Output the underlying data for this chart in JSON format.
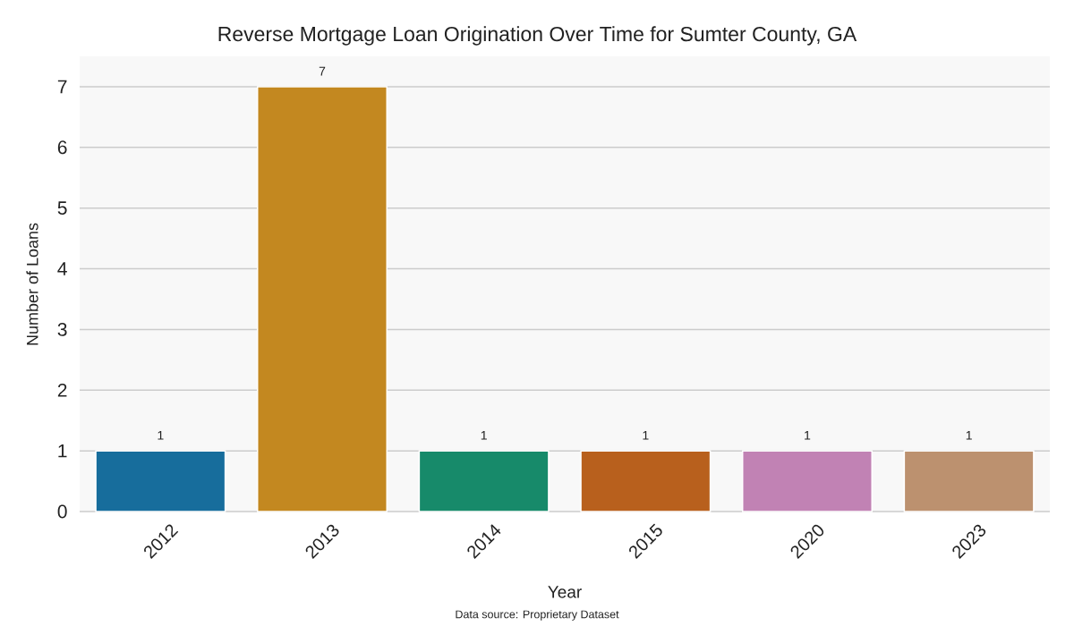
{
  "chart_data": {
    "type": "bar",
    "title": "Reverse Mortgage Loan Origination Over Time for Sumter County, GA",
    "xlabel": "Year",
    "ylabel": "Number of Loans",
    "categories": [
      "2012",
      "2013",
      "2014",
      "2015",
      "2020",
      "2023"
    ],
    "values": [
      1,
      7,
      1,
      1,
      1,
      1
    ],
    "colors": [
      "#176d9c",
      "#c38820",
      "#178a6a",
      "#b8601d",
      "#c182b4",
      "#bc916f"
    ],
    "ylim": [
      0,
      7.5
    ],
    "yticks": [
      0,
      1,
      2,
      3,
      4,
      5,
      6,
      7
    ],
    "grid": "y",
    "data_labels": true,
    "annotations": [
      "Data source: Proprietary Dataset"
    ]
  }
}
